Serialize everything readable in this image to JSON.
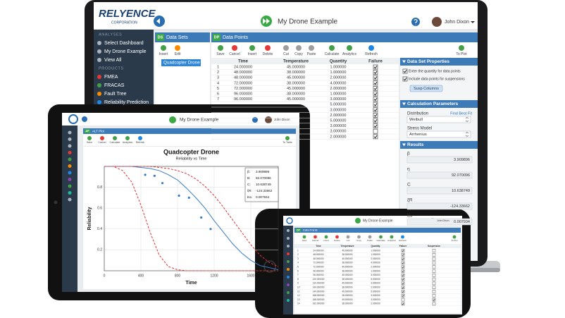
{
  "laptop": {
    "logo": {
      "name": "RELYENCE",
      "sub": "CORPORATION"
    },
    "title": "My Drone Example",
    "user": "John Dixon",
    "sidebar": [
      {
        "heading": "ANALYSES",
        "items": [
          "Select Dashboard",
          "My Drone Example",
          "View All"
        ]
      },
      {
        "heading": "PRODUCTS",
        "items": [
          "FMEA",
          "FRACAS",
          "Fault Tree",
          "Reliability Prediction"
        ]
      }
    ],
    "datasets": {
      "badge": "DS",
      "title": "Data Sets",
      "tools": [
        "Insert",
        "Edit"
      ],
      "items": [
        "Quadcopter Drone"
      ]
    },
    "datapoints": {
      "badge": "DP",
      "title": "Data Points",
      "tools": [
        "Save",
        "Cancel",
        "Insert",
        "Delete",
        "Cut",
        "Copy",
        "Paste",
        "Calculate",
        "Analytics",
        "Refresh"
      ],
      "to_plot": "To Plot",
      "columns": [
        "Time",
        "Temperature",
        "Quantity",
        "Failure"
      ],
      "rows": [
        [
          "1",
          "24.000000",
          "45.000000",
          "1.000000",
          true
        ],
        [
          "2",
          "48.000000",
          "38.000000",
          "1.000000",
          true
        ],
        [
          "3",
          "48.000000",
          "45.000000",
          "2.000000",
          true
        ],
        [
          "4",
          "72.000000",
          "38.000000",
          "4.000000",
          true
        ],
        [
          "5",
          "72.000000",
          "45.000000",
          "2.000000",
          true
        ],
        [
          "6",
          "96.000000",
          "38.000000",
          "1.000000",
          true
        ],
        [
          "7",
          "96.000000",
          "45.000000",
          "3.000000",
          true
        ],
        [
          "5.000000",
          true
        ],
        [
          "3.000000",
          true
        ],
        [
          "2.000000",
          true
        ],
        [
          "5.000000",
          true
        ],
        [
          "3.000000",
          true
        ],
        [
          "3.000000",
          false
        ],
        [
          "2.000000",
          true
        ]
      ]
    },
    "properties": {
      "title": "Data Set Properties",
      "options": [
        {
          "label": "Enter the quantity for data points",
          "checked": true
        },
        {
          "label": "Include data points for suspensions",
          "checked": true
        }
      ],
      "button": "Susp Columns"
    },
    "calc": {
      "title": "Calculation Parameters",
      "distribution_label": "Distribution",
      "best_fit": "Find Best Fit",
      "distribution": "Weibull",
      "stress_label": "Stress Model",
      "stress": "Arrhenius"
    },
    "results": {
      "title": "Results",
      "items": [
        {
          "label": "β",
          "value": "3.909896"
        },
        {
          "label": "η",
          "value": "92.070096"
        },
        {
          "label": "C",
          "value": "10.638749"
        },
        {
          "label": "ξR",
          "value": "-124.33662"
        },
        {
          "label": "Eₐ",
          "value": "0.007934"
        }
      ]
    }
  },
  "tablet": {
    "title": "My Drone Example",
    "user": "John Dixon",
    "tab": {
      "badge": "AP",
      "title": "ALT Plot"
    },
    "tools": [
      "Save",
      "Cancel",
      "Calculate",
      "Analytics",
      "Refresh"
    ],
    "to_table": "To Table"
  },
  "chart_data": {
    "type": "line",
    "title": "Quadcopter Drone",
    "subtitle": "Reliability vs Time",
    "x_label": "Time",
    "y_label": "Reliability",
    "x": [
      0,
      100,
      200,
      300,
      400,
      500,
      600,
      700,
      800,
      900,
      1000,
      1100,
      1200,
      1300,
      1400,
      1500,
      1600,
      1700,
      1800,
      1900
    ],
    "series": [
      {
        "color": "#3a7cc1",
        "dashed": false,
        "values": [
          1,
          1,
          1,
          1,
          0.99,
          0.98,
          0.96,
          0.92,
          0.87,
          0.79,
          0.7,
          0.6,
          0.48,
          0.37,
          0.26,
          0.17,
          0.1,
          0.05,
          0.03,
          0.01
        ]
      },
      {
        "color": "#e03030",
        "dashed": true,
        "values": [
          1,
          1,
          0.96,
          0.85,
          0.63,
          0.37,
          0.15,
          0.04,
          0.01,
          0,
          0,
          0,
          0,
          0,
          0,
          0,
          0,
          0,
          0,
          0
        ]
      },
      {
        "color": "#e03030",
        "dashed": true,
        "values": [
          1,
          1,
          1,
          1,
          1,
          1,
          0.99,
          0.98,
          0.96,
          0.93,
          0.88,
          0.81,
          0.72,
          0.61,
          0.49,
          0.37,
          0.25,
          0.15,
          0.08,
          0.04
        ]
      }
    ],
    "points": {
      "color": "#3a7cc1",
      "x": [
        447,
        549,
        635,
        816,
        925,
        1059,
        1161
      ],
      "y": [
        0.92,
        0.91,
        0.84,
        0.72,
        0.7,
        0.51,
        0.4
      ]
    },
    "xlim": [
      0,
      1900
    ],
    "xticks": [
      0,
      400,
      800,
      1200,
      1600
    ],
    "ylim": [
      0,
      1
    ],
    "yticks": [
      0.2,
      0.4,
      0.6,
      0.8
    ],
    "grid": true,
    "annotations": [
      {
        "label": "β:",
        "value": "3.909896"
      },
      {
        "label": "B:",
        "value": "92.070096"
      },
      {
        "label": "C:",
        "value": "10.638749"
      },
      {
        "label": "ξR:",
        "value": "-124.33662"
      },
      {
        "label": "Ea:",
        "value": "0.007934"
      }
    ]
  },
  "phone": {
    "title": "My Drone Example",
    "user": "John Dixon",
    "panel": {
      "badge": "DP",
      "title": "Data Points"
    },
    "tools": [
      "Save",
      "Cancel",
      "Insert",
      "Delete",
      "Cut",
      "Copy",
      "Paste",
      "Calculate",
      "Analytics",
      "Refresh"
    ],
    "to_plot": "To Plot",
    "columns": [
      "Time",
      "Temperature",
      "Quantity",
      "Failure",
      "Suspension"
    ],
    "rows": [
      [
        "1",
        "24.000000",
        "45.000000",
        "1.000000",
        true,
        false
      ],
      [
        "2",
        "48.000000",
        "38.000000",
        "1.000000",
        true,
        false
      ],
      [
        "3",
        "48.000000",
        "45.000000",
        "2.000000",
        true,
        false
      ],
      [
        "4",
        "72.000000",
        "38.000000",
        "4.000000",
        true,
        false
      ],
      [
        "5",
        "72.000000",
        "45.000000",
        "2.000000",
        true,
        false
      ],
      [
        "6",
        "96.000000",
        "38.000000",
        "1.000000",
        true,
        false
      ],
      [
        "7",
        "96.000000",
        "45.000000",
        "3.000000",
        true,
        false
      ],
      [
        "8",
        "120.000000",
        "38.000000",
        "5.000000",
        true,
        false
      ],
      [
        "9",
        "120.000000",
        "45.000000",
        "3.000000",
        true,
        false
      ],
      [
        "10",
        "144.000000",
        "38.000000",
        "2.000000",
        true,
        false
      ],
      [
        "11",
        "144.000000",
        "45.000000",
        "5.000000",
        true,
        false
      ],
      [
        "12",
        "168.000000",
        "38.000000",
        "3.000000",
        true,
        false
      ],
      [
        "13",
        "168.000000",
        "45.000000",
        "3.000000",
        false,
        true
      ],
      [
        "14",
        "192.000000",
        "38.000000",
        "2.000000",
        true,
        false
      ]
    ]
  }
}
